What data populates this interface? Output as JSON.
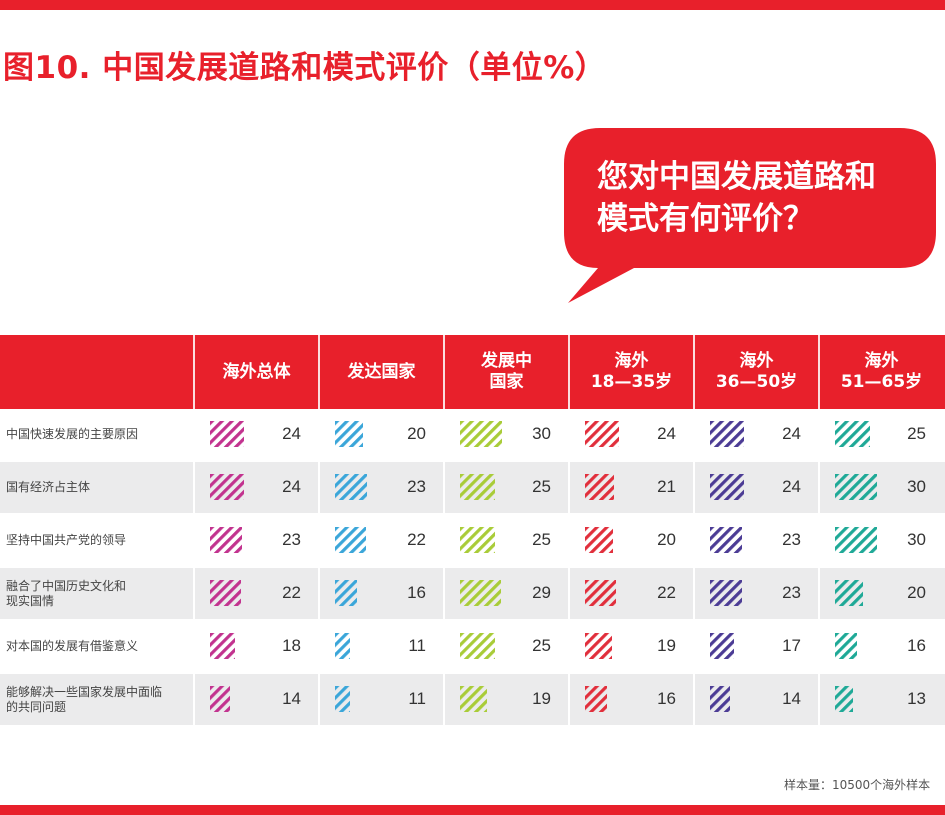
{
  "title": "图10. 中国发展道路和模式评价（单位%）",
  "bubble": {
    "line1": "您对中国发展道路和",
    "line2": "模式有何评价？"
  },
  "colors": {
    "brand_red": "#e8202b",
    "series": [
      "#c2338f",
      "#3ba6d9",
      "#a9cc38",
      "#e12f3c",
      "#4c3c95",
      "#1fa997"
    ]
  },
  "chart_data": {
    "type": "table",
    "title": "图10. 中国发展道路和模式评价（单位%）",
    "columns": [
      {
        "name": "海外总体",
        "lines": [
          "海外总体"
        ]
      },
      {
        "name": "发达国家",
        "lines": [
          "发达国家"
        ]
      },
      {
        "name": "发展中国家",
        "lines": [
          "发展中",
          "国家"
        ]
      },
      {
        "name": "海外18—35岁",
        "lines": [
          "海外",
          "18—35岁"
        ]
      },
      {
        "name": "海外36—50岁",
        "lines": [
          "海外",
          "36—50岁"
        ]
      },
      {
        "name": "海外51—65岁",
        "lines": [
          "海外",
          "51—65岁"
        ]
      }
    ],
    "rows": [
      {
        "label_lines": [
          "中国快速发展的主要原因"
        ],
        "values": [
          24,
          20,
          30,
          24,
          24,
          25
        ]
      },
      {
        "label_lines": [
          "国有经济占主体"
        ],
        "values": [
          24,
          23,
          25,
          21,
          24,
          30
        ]
      },
      {
        "label_lines": [
          "坚持中国共产党的领导"
        ],
        "values": [
          23,
          22,
          25,
          20,
          23,
          30
        ]
      },
      {
        "label_lines": [
          "融合了中国历史文化和",
          "现实国情"
        ],
        "values": [
          22,
          16,
          29,
          22,
          23,
          20
        ]
      },
      {
        "label_lines": [
          "对本国的发展有借鉴意义"
        ],
        "values": [
          18,
          11,
          25,
          19,
          17,
          16
        ]
      },
      {
        "label_lines": [
          "能够解决一些国家发展中面临",
          "的共同问题"
        ],
        "values": [
          14,
          11,
          19,
          16,
          14,
          13
        ]
      }
    ]
  },
  "footer": {
    "note": "样本量：10500个海外样本"
  }
}
